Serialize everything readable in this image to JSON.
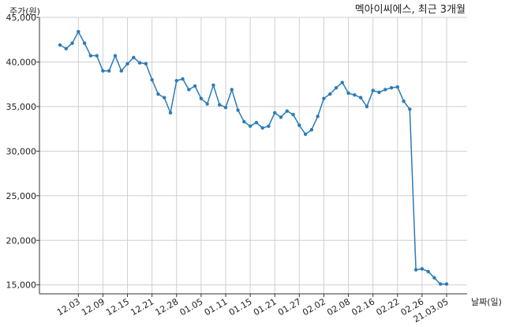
{
  "chart_data": {
    "type": "line",
    "title": "멕아이씨에스, 최근 3개월",
    "xlabel": "날짜(일)",
    "ylabel": "주가(원)",
    "ylim": [
      14000,
      45000
    ],
    "yticks": [
      15000,
      20000,
      25000,
      30000,
      35000,
      40000,
      45000
    ],
    "ytick_labels": [
      "15,000",
      "20,000",
      "25,000",
      "30,000",
      "35,000",
      "40,000",
      "45,000"
    ],
    "xticks": [
      "12.03",
      "12.09",
      "12.15",
      "12.21",
      "12.28",
      "01.05",
      "01.11",
      "01.15",
      "01.21",
      "01.27",
      "02.02",
      "02.08",
      "02.16",
      "02.22",
      "02.26",
      "03.05"
    ],
    "xtick_labels": [
      "12.03",
      "12.09",
      "12.15",
      "12.21",
      "12.28",
      "01.05",
      "01.11",
      "01.15",
      "01.21",
      "01.27",
      "02.02",
      "02.08",
      "02.16",
      "02.22",
      "02.26",
      "21.03.05"
    ],
    "grid": true,
    "series": [
      {
        "color": "#2b7bb9",
        "x": [
          "11.30",
          "12.01",
          "12.02",
          "12.03",
          "12.04",
          "12.07",
          "12.08",
          "12.09",
          "12.10",
          "12.11",
          "12.14",
          "12.15",
          "12.16",
          "12.17",
          "12.18",
          "12.21",
          "12.22",
          "12.23",
          "12.24",
          "12.28",
          "12.29",
          "12.30",
          "01.04",
          "01.05",
          "01.06",
          "01.07",
          "01.08",
          "01.11",
          "01.12",
          "01.13",
          "01.14",
          "01.15",
          "01.18",
          "01.19",
          "01.20",
          "01.21",
          "01.22",
          "01.25",
          "01.26",
          "01.27",
          "01.28",
          "01.29",
          "02.01",
          "02.02",
          "02.03",
          "02.04",
          "02.05",
          "02.08",
          "02.09",
          "02.10",
          "02.15",
          "02.16",
          "02.17",
          "02.18",
          "02.19",
          "02.22",
          "02.23",
          "02.24",
          "02.25",
          "02.26",
          "03.02",
          "03.03",
          "03.04",
          "03.05"
        ],
        "values": [
          41900,
          41500,
          42100,
          43400,
          42100,
          40700,
          40700,
          39000,
          39000,
          40700,
          39000,
          39800,
          40500,
          39900,
          39800,
          38000,
          36400,
          36000,
          34300,
          37900,
          38100,
          36900,
          37300,
          35900,
          35300,
          37400,
          35200,
          34900,
          36900,
          34600,
          33300,
          32800,
          33200,
          32600,
          32800,
          34300,
          33800,
          34500,
          34100,
          32900,
          31900,
          32400,
          33900,
          35900,
          36400,
          37100,
          37700,
          36500,
          36300,
          36000,
          35000,
          36800,
          36600,
          36900,
          37100,
          37200,
          35600,
          34700,
          16700,
          16800,
          16500,
          15800,
          15100,
          15100
        ]
      }
    ]
  }
}
